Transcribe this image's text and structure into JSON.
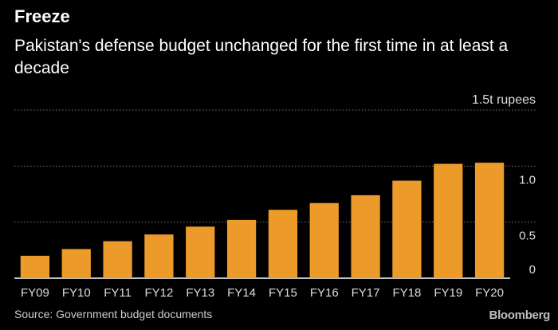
{
  "title": "Freeze",
  "subtitle": "Pakistan's defense budget unchanged for the first time in at least a decade",
  "source": "Source: Government budget documents",
  "brand": "Bloomberg",
  "colors": {
    "bar": "#ec9a29",
    "grid": "#777777",
    "text": "#ffffff",
    "axis_text": "#dddddd"
  },
  "chart_data": {
    "type": "bar",
    "title": "Freeze",
    "subtitle": "Pakistan's defense budget unchanged for the first time in at least a decade",
    "categories": [
      "FY09",
      "FY10",
      "FY11",
      "FY12",
      "FY13",
      "FY14",
      "FY15",
      "FY16",
      "FY17",
      "FY18",
      "FY19",
      "FY20"
    ],
    "values": [
      0.2,
      0.26,
      0.33,
      0.39,
      0.46,
      0.52,
      0.61,
      0.67,
      0.74,
      0.87,
      1.02,
      1.03
    ],
    "xlabel": "",
    "ylabel": "",
    "unit_label": "1.5t rupees",
    "ylim": [
      0,
      1.5
    ],
    "yticks": [
      0,
      0.5,
      1.0,
      1.5
    ],
    "ytick_labels": [
      "0",
      "0.5",
      "1.0",
      ""
    ],
    "grid": true,
    "legend": "none"
  }
}
